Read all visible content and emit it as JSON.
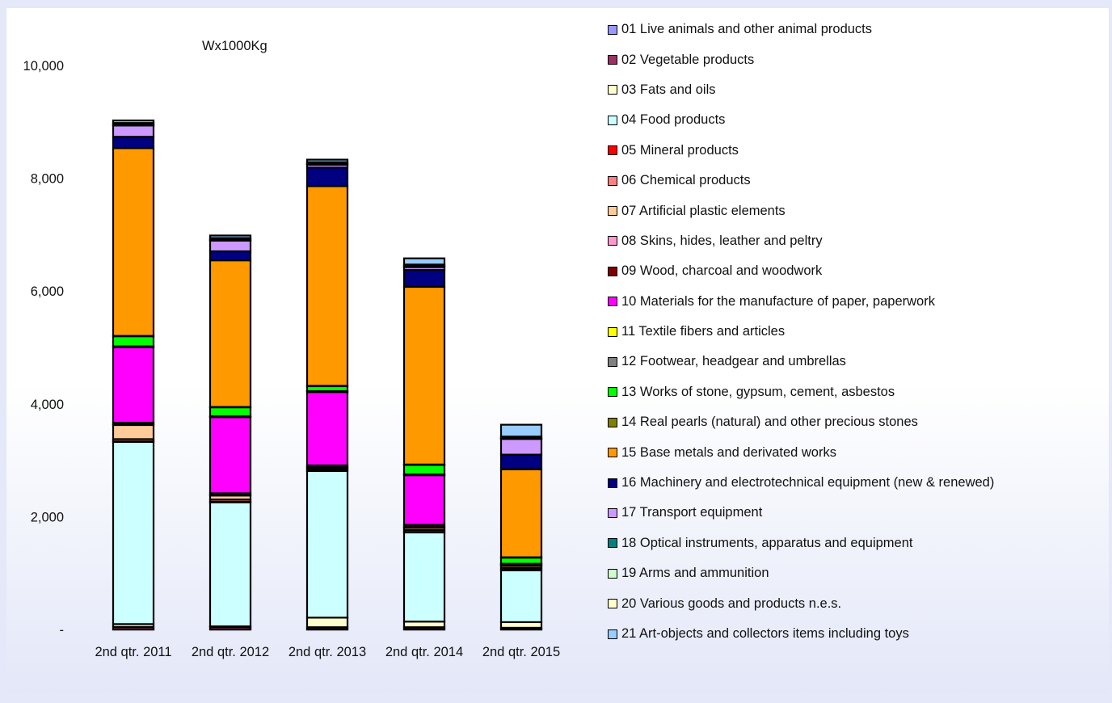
{
  "chart_data": {
    "type": "bar",
    "stacked": true,
    "title": "Wx1000Kg",
    "ylim": [
      0,
      10000
    ],
    "y_ticks": [
      0,
      2000,
      4000,
      6000,
      8000,
      10000
    ],
    "y_tick_labels": [
      "-",
      "2,000",
      "4,000",
      "6,000",
      "8,000",
      "10,000"
    ],
    "categories": [
      "2nd qtr. 2011",
      "2nd qtr. 2012",
      "2nd qtr. 2013",
      "2nd qtr. 2014",
      "2nd qtr. 2015"
    ],
    "legend_position": "right",
    "grid": false,
    "series": [
      {
        "name": "01 Live animals and other animal products",
        "color": "#9999ff",
        "values": [
          5,
          5,
          5,
          5,
          5
        ]
      },
      {
        "name": "02 Vegetable products",
        "color": "#993366",
        "values": [
          40,
          40,
          35,
          35,
          25
        ]
      },
      {
        "name": "03 Fats and oils",
        "color": "#ffffcc",
        "values": [
          50,
          10,
          170,
          100,
          100
        ]
      },
      {
        "name": "04 Food products",
        "color": "#ccffff",
        "values": [
          3230,
          2200,
          2600,
          1580,
          920
        ]
      },
      {
        "name": "05 Mineral products",
        "color": "#ff0000",
        "values": [
          10,
          10,
          10,
          10,
          10
        ]
      },
      {
        "name": "06 Chemical products",
        "color": "#ff8080",
        "values": [
          40,
          40,
          30,
          35,
          30
        ]
      },
      {
        "name": "07 Artificial plastic elements",
        "color": "#ffcc99",
        "values": [
          250,
          70,
          20,
          40,
          40
        ]
      },
      {
        "name": "08 Skins, hides, leather and peltry",
        "color": "#ff99cc",
        "values": [
          10,
          10,
          10,
          10,
          5
        ]
      },
      {
        "name": "09 Wood, charcoal and woodwork",
        "color": "#800000",
        "values": [
          30,
          30,
          30,
          40,
          20
        ]
      },
      {
        "name": "10 Materials for the manufacture of paper, paperwork",
        "color": "#ff00ff",
        "values": [
          1340,
          1350,
          1300,
          880,
          0
        ]
      },
      {
        "name": "11 Textile fibers and articles",
        "color": "#ffff00",
        "values": [
          10,
          10,
          10,
          10,
          5
        ]
      },
      {
        "name": "12 Footwear, headgear and umbrellas",
        "color": "#808080",
        "values": [
          5,
          5,
          5,
          5,
          5
        ]
      },
      {
        "name": "13 Works of stone, gypsum, cement, asbestos",
        "color": "#00ff00",
        "values": [
          180,
          160,
          90,
          170,
          110
        ]
      },
      {
        "name": "14 Real pearls (natural) and other precious stones",
        "color": "#808000",
        "values": [
          5,
          5,
          5,
          5,
          5
        ]
      },
      {
        "name": "15 Base metals and derivated works",
        "color": "#ff9900",
        "values": [
          3330,
          2600,
          3540,
          3150,
          1560
        ]
      },
      {
        "name": "16 Machinery and electrotechnical equipment (new & renewed)",
        "color": "#000080",
        "values": [
          200,
          160,
          330,
          300,
          260
        ]
      },
      {
        "name": "17 Transport equipment",
        "color": "#cc99ff",
        "values": [
          200,
          190,
          50,
          50,
          280
        ]
      },
      {
        "name": "18 Optical instruments, apparatus and equipment",
        "color": "#008080",
        "values": [
          10,
          10,
          10,
          10,
          5
        ]
      },
      {
        "name": "19 Arms and ammunition",
        "color": "#ccffcc",
        "values": [
          5,
          5,
          5,
          5,
          5
        ]
      },
      {
        "name": "20 Various goods and products n.e.s.",
        "color": "#ffffcc",
        "values": [
          30,
          30,
          30,
          30,
          30
        ]
      },
      {
        "name": "21 Art-objects and collectors items including toys",
        "color": "#99ccff",
        "values": [
          45,
          45,
          45,
          110,
          210
        ]
      }
    ]
  }
}
